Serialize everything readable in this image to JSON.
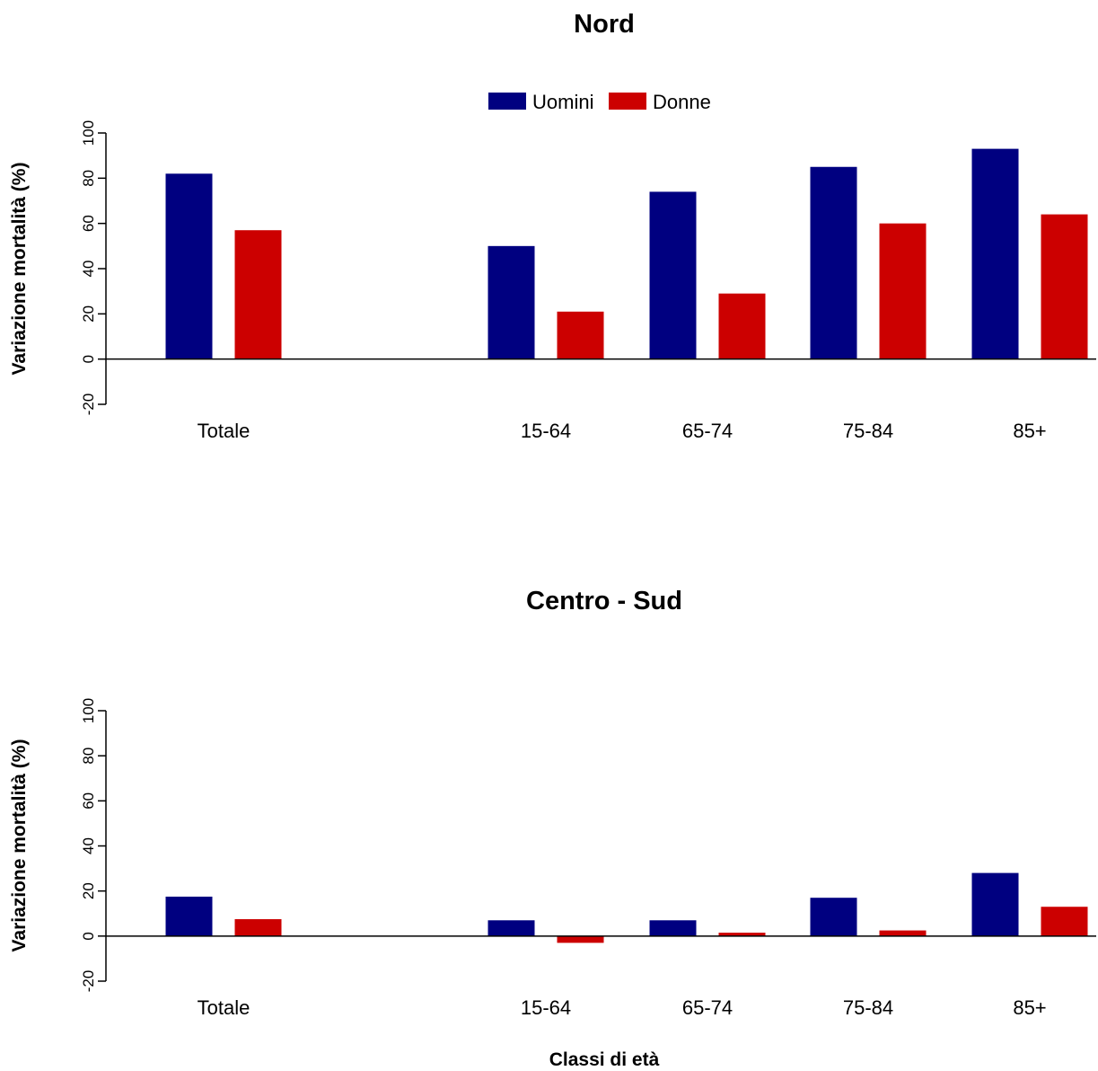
{
  "colors": {
    "men": "#000080",
    "women": "#cc0000"
  },
  "legend": [
    {
      "label": "Uomini",
      "color": "#000080"
    },
    {
      "label": "Donne",
      "color": "#cc0000"
    }
  ],
  "xlabel": "Classi di età",
  "chart_data": [
    {
      "type": "bar",
      "title": "Nord",
      "ylabel": "Variazione mortalità (%)",
      "ylim": [
        -20,
        100
      ],
      "yticks": [
        "-20",
        "0",
        "20",
        "40",
        "60",
        "80",
        "100"
      ],
      "categories": [
        "Totale",
        "15-64",
        "65-74",
        "75-84",
        "85+"
      ],
      "series": [
        {
          "name": "Uomini",
          "values": [
            82,
            50,
            74,
            85,
            93
          ]
        },
        {
          "name": "Donne",
          "values": [
            57,
            21,
            29,
            60,
            64
          ]
        }
      ],
      "legend": "top-center",
      "grid": false
    },
    {
      "type": "bar",
      "title": "Centro - Sud",
      "ylabel": "Variazione mortalità (%)",
      "ylim": [
        -20,
        100
      ],
      "yticks": [
        "-20",
        "0",
        "20",
        "40",
        "60",
        "80",
        "100"
      ],
      "categories": [
        "Totale",
        "15-64",
        "65-74",
        "75-84",
        "85+"
      ],
      "series": [
        {
          "name": "Uomini",
          "values": [
            17.5,
            7,
            7,
            17,
            28
          ]
        },
        {
          "name": "Donne",
          "values": [
            7.5,
            -3,
            1.5,
            2.5,
            13
          ]
        }
      ],
      "grid": false
    }
  ]
}
